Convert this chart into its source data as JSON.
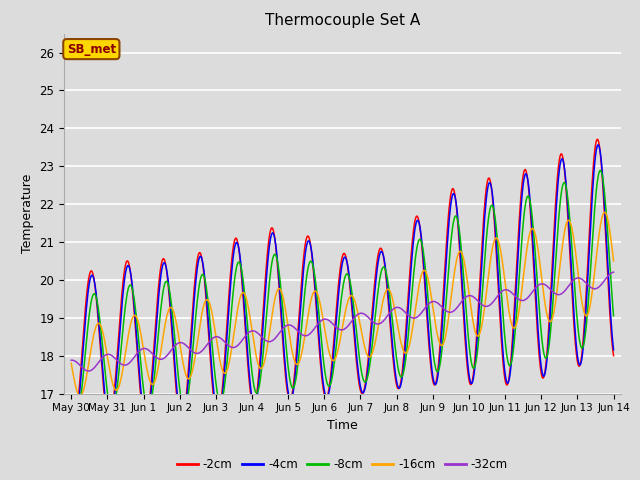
{
  "title": "Thermocouple Set A",
  "xlabel": "Time",
  "ylabel": "Temperature",
  "ylim": [
    17.0,
    26.5
  ],
  "annotation_text": "SB_met",
  "annotation_color": "#8B0000",
  "annotation_bg": "#FFD700",
  "annotation_border": "#8B4500",
  "series": [
    "-2cm",
    "-4cm",
    "-8cm",
    "-16cm",
    "-32cm"
  ],
  "colors": [
    "#FF0000",
    "#0000FF",
    "#00BB00",
    "#FFA500",
    "#9933CC"
  ],
  "background_color": "#DCDCDC",
  "plot_bg": "#DCDCDC",
  "grid_color": "#FFFFFF",
  "yticks": [
    17.0,
    18.0,
    19.0,
    20.0,
    21.0,
    22.0,
    23.0,
    24.0,
    25.0,
    26.0
  ],
  "xtick_labels": [
    "May 30",
    "May 31",
    "Jun 1",
    "Jun 2",
    "Jun 3",
    "Jun 4",
    "Jun 5",
    "Jun 6",
    "Jun 7",
    "Jun 8",
    "Jun 9",
    "Jun 10",
    "Jun 11",
    "Jun 12",
    "Jun 13",
    "Jun 14"
  ],
  "xtick_positions": [
    0,
    1,
    2,
    3,
    4,
    5,
    6,
    7,
    8,
    9,
    10,
    11,
    12,
    13,
    14,
    15
  ]
}
